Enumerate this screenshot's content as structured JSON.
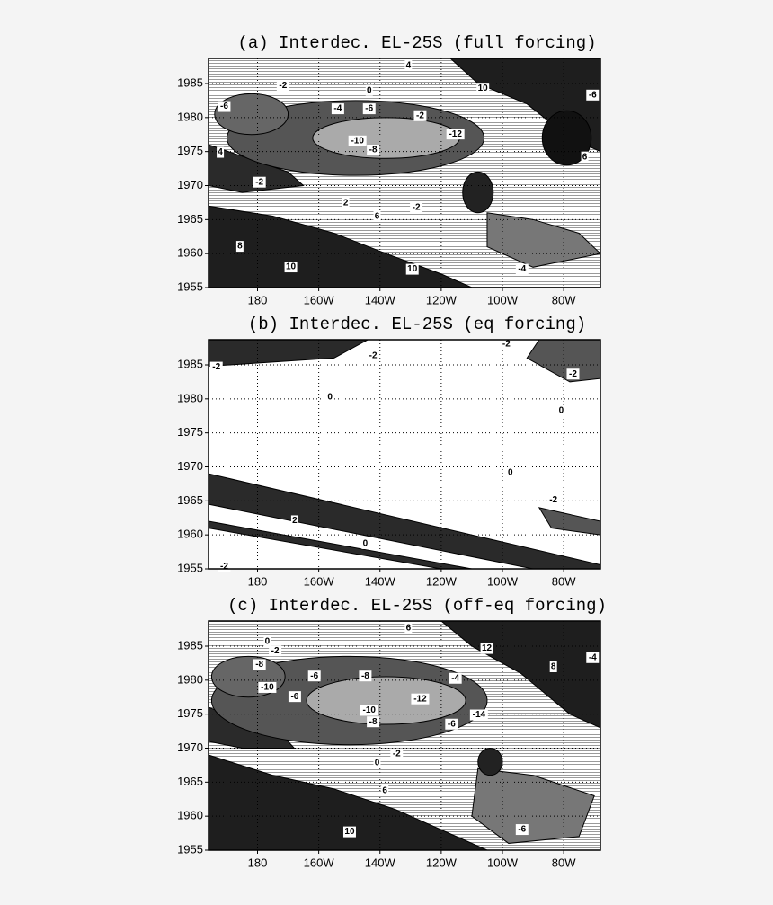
{
  "chart_data": [
    {
      "type": "contour",
      "title": "(a) Interdec. EL-25S (full forcing)",
      "xlim": [
        164,
        292
      ],
      "ylim": [
        1955,
        1988.7
      ],
      "xticks": [
        {
          "value": 180,
          "label": "180"
        },
        {
          "value": 200,
          "label": "160W"
        },
        {
          "value": 220,
          "label": "140W"
        },
        {
          "value": 240,
          "label": "120W"
        },
        {
          "value": 260,
          "label": "100W"
        },
        {
          "value": 280,
          "label": "80W"
        }
      ],
      "yticks": [
        1955,
        1960,
        1965,
        1970,
        1975,
        1980,
        1985
      ],
      "grid": true,
      "contour_labels": [
        -2,
        4,
        0,
        10,
        -6,
        -4,
        -6,
        -2,
        -12,
        -10,
        -8,
        4,
        -2,
        2,
        -2,
        6,
        8,
        10,
        10,
        -4,
        6,
        -6
      ]
    },
    {
      "type": "contour",
      "title": "(b) Interdec. EL-25S (eq forcing)",
      "xlim": [
        164,
        292
      ],
      "ylim": [
        1955,
        1988.7
      ],
      "xticks": [
        {
          "value": 180,
          "label": "180"
        },
        {
          "value": 200,
          "label": "160W"
        },
        {
          "value": 220,
          "label": "140W"
        },
        {
          "value": 240,
          "label": "120W"
        },
        {
          "value": 260,
          "label": "100W"
        },
        {
          "value": 280,
          "label": "80W"
        }
      ],
      "yticks": [
        1955,
        1960,
        1965,
        1970,
        1975,
        1980,
        1985
      ],
      "grid": true,
      "contour_labels": [
        -2,
        -2,
        -2,
        -2,
        0,
        0,
        0,
        -2,
        2,
        0,
        -2
      ]
    },
    {
      "type": "contour",
      "title": "(c) Interdec. EL-25S (off-eq forcing)",
      "xlim": [
        164,
        292
      ],
      "ylim": [
        1955,
        1988.7
      ],
      "xticks": [
        {
          "value": 180,
          "label": "180"
        },
        {
          "value": 200,
          "label": "160W"
        },
        {
          "value": 220,
          "label": "140W"
        },
        {
          "value": 240,
          "label": "120W"
        },
        {
          "value": 260,
          "label": "100W"
        },
        {
          "value": 280,
          "label": "80W"
        }
      ],
      "yticks": [
        1955,
        1960,
        1965,
        1970,
        1975,
        1980,
        1985
      ],
      "grid": true,
      "contour_labels": [
        6,
        0,
        -2,
        12,
        -8,
        -6,
        -8,
        -4,
        -10,
        -6,
        -12,
        -10,
        -8,
        -14,
        -6,
        -2,
        0,
        6,
        10,
        -6,
        -4,
        8
      ]
    }
  ]
}
